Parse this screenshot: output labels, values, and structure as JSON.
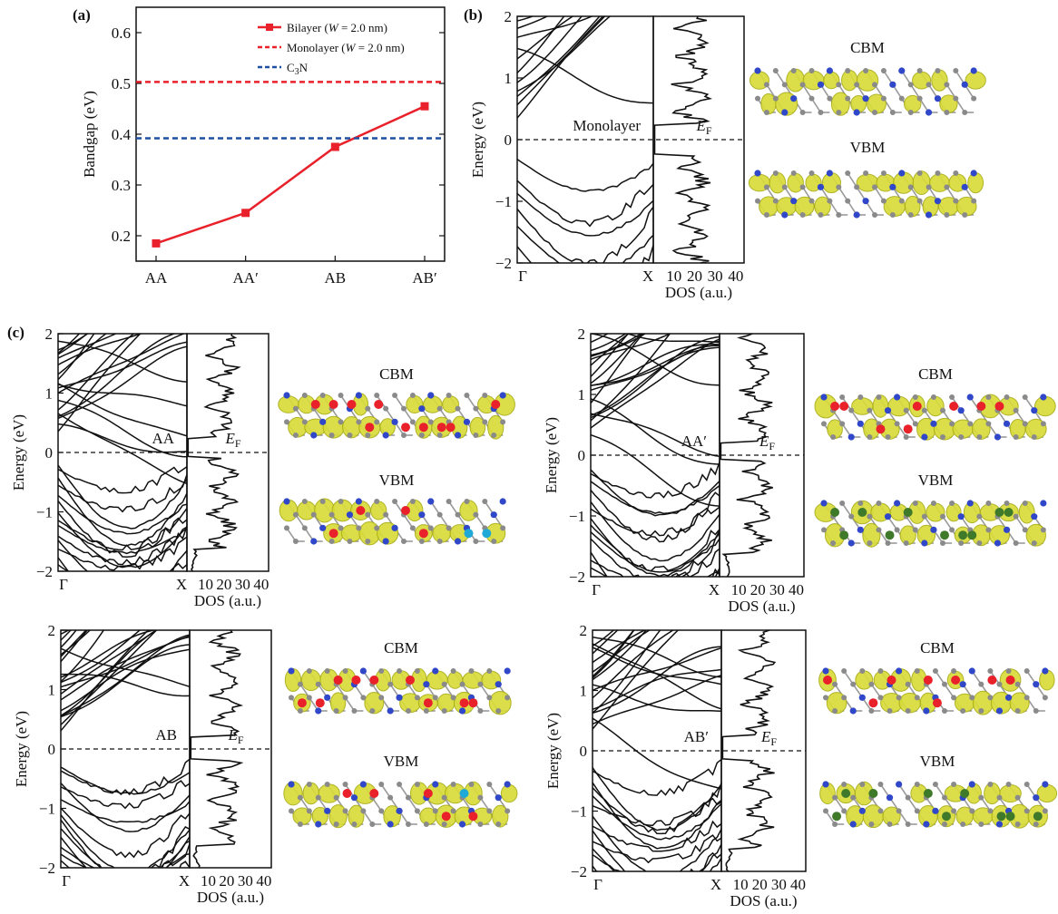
{
  "panel_labels": {
    "a": "(a)",
    "b": "(b)",
    "c": "(c)"
  },
  "chart_data": [
    {
      "panel": "a",
      "type": "line",
      "categories": [
        "AA",
        "AA′",
        "AB",
        "AB′"
      ],
      "series": [
        {
          "name": "Bilayer (W = 2.0 nm)",
          "values": [
            0.185,
            0.245,
            0.375,
            0.455
          ],
          "color": "#e8212a",
          "style": "solid-square"
        },
        {
          "name": "Monolayer (W = 2.0 nm)",
          "constant": 0.503,
          "color": "#e8212a",
          "style": "dashed"
        },
        {
          "name": "C3N",
          "constant": 0.392,
          "color": "#1f4fa3",
          "style": "dashed"
        }
      ],
      "ylabel": "Bandgap (eV)",
      "ylim": [
        0.15,
        0.65
      ],
      "yticks": [
        "0.2",
        "0.3",
        "0.4",
        "0.5",
        "0.6"
      ],
      "legend_position": "top-right",
      "legend": {
        "bilayer": {
          "pre": "Bilayer (",
          "var": "W",
          "post": " = 2.0 nm)"
        },
        "monolayer": {
          "pre": "Monolayer (",
          "var": "W",
          "post": " = 2.0 nm)"
        },
        "c3n": {
          "pre": "C",
          "sub": "3",
          "post": "N"
        }
      }
    },
    {
      "panel": "b",
      "type": "line",
      "subtype": "band-structure",
      "label": "Monolayer",
      "ylabel": "Energy (eV)",
      "ylim": [
        -2,
        2
      ],
      "yticks": [
        "−2",
        "−1",
        "0",
        "1",
        "2"
      ],
      "kpoints": [
        "Γ",
        "X"
      ],
      "dos_xticks": [
        "10",
        "20",
        "30",
        "40"
      ],
      "dos_xlabel": "DOS (a.u.)",
      "fermi": {
        "base": "E",
        "sub": "F"
      },
      "conduction_band_min": 0.3,
      "valence_band_max": -0.3
    },
    {
      "panel": "c-AA",
      "type": "line",
      "subtype": "band-structure",
      "label": "AA",
      "ylabel": "Energy (eV)",
      "ylim": [
        -2,
        2
      ],
      "yticks": [
        "−2",
        "−1",
        "0",
        "1",
        "2"
      ],
      "kpoints": [
        "Γ",
        "X"
      ],
      "dos_xticks": [
        "10",
        "20",
        "30",
        "40"
      ],
      "dos_xlabel": "DOS (a.u.)",
      "fermi": {
        "base": "E",
        "sub": "F"
      },
      "conduction_band_min": 0.3,
      "valence_band_max": -0.12
    },
    {
      "panel": "c-AA′",
      "type": "line",
      "subtype": "band-structure",
      "label": "AA′",
      "ylabel": "Energy (eV)",
      "ylim": [
        -2,
        2
      ],
      "yticks": [
        "−2",
        "−1",
        "0",
        "1",
        "2"
      ],
      "kpoints": [
        "Γ",
        "X"
      ],
      "dos_xticks": [
        "10",
        "20",
        "30",
        "40"
      ],
      "dos_xlabel": "DOS (a.u.)",
      "fermi": {
        "base": "E",
        "sub": "F"
      },
      "conduction_band_min": 0.28,
      "valence_band_max": -0.15
    },
    {
      "panel": "c-AB",
      "type": "line",
      "subtype": "band-structure",
      "label": "AB",
      "ylabel": "Energy (eV)",
      "ylim": [
        -2,
        2
      ],
      "yticks": [
        "−2",
        "−1",
        "0",
        "1",
        "2"
      ],
      "kpoints": [
        "Γ",
        "X"
      ],
      "dos_xticks": [
        "10",
        "20",
        "30",
        "40"
      ],
      "dos_xlabel": "DOS (a.u.)",
      "fermi": {
        "base": "E",
        "sub": "F"
      },
      "conduction_band_min": 0.25,
      "valence_band_max": -0.22
    },
    {
      "panel": "c-AB′",
      "type": "line",
      "subtype": "band-structure",
      "label": "AB′",
      "ylabel": "Energy (eV)",
      "ylim": [
        -2,
        2
      ],
      "yticks": [
        "−2",
        "−1",
        "0",
        "1",
        "2"
      ],
      "kpoints": [
        "Γ",
        "X"
      ],
      "dos_xticks": [
        "10",
        "20",
        "30",
        "40"
      ],
      "dos_xlabel": "DOS (a.u.)",
      "fermi": {
        "base": "E",
        "sub": "F"
      },
      "conduction_band_min": 0.3,
      "valence_band_max": -0.2
    }
  ],
  "orbitals": [
    {
      "panel": "b",
      "cbm": "CBM",
      "vbm": "VBM",
      "cbm_dots": "none",
      "vbm_dots": "none"
    },
    {
      "panel": "c-AA",
      "cbm": "CBM",
      "vbm": "VBM",
      "cbm_dots": "red",
      "vbm_dots": "red-cyan"
    },
    {
      "panel": "c-AA′",
      "cbm": "CBM",
      "vbm": "VBM",
      "cbm_dots": "red",
      "vbm_dots": "green"
    },
    {
      "panel": "c-AB",
      "cbm": "CBM",
      "vbm": "VBM",
      "cbm_dots": "red",
      "vbm_dots": "red-cyan"
    },
    {
      "panel": "c-AB′",
      "cbm": "CBM",
      "vbm": "VBM",
      "cbm_dots": "red",
      "vbm_dots": "green"
    }
  ],
  "colors": {
    "red": "#e8212a",
    "blue": "#1f4fa3",
    "lobe": "#d8dc3a",
    "lobe_edge": "#a9ad14",
    "nitrogen": "#2f47c8",
    "carbon": "#8a8a8a",
    "cyan": "#1fa9d6",
    "green": "#3f7a2a"
  }
}
